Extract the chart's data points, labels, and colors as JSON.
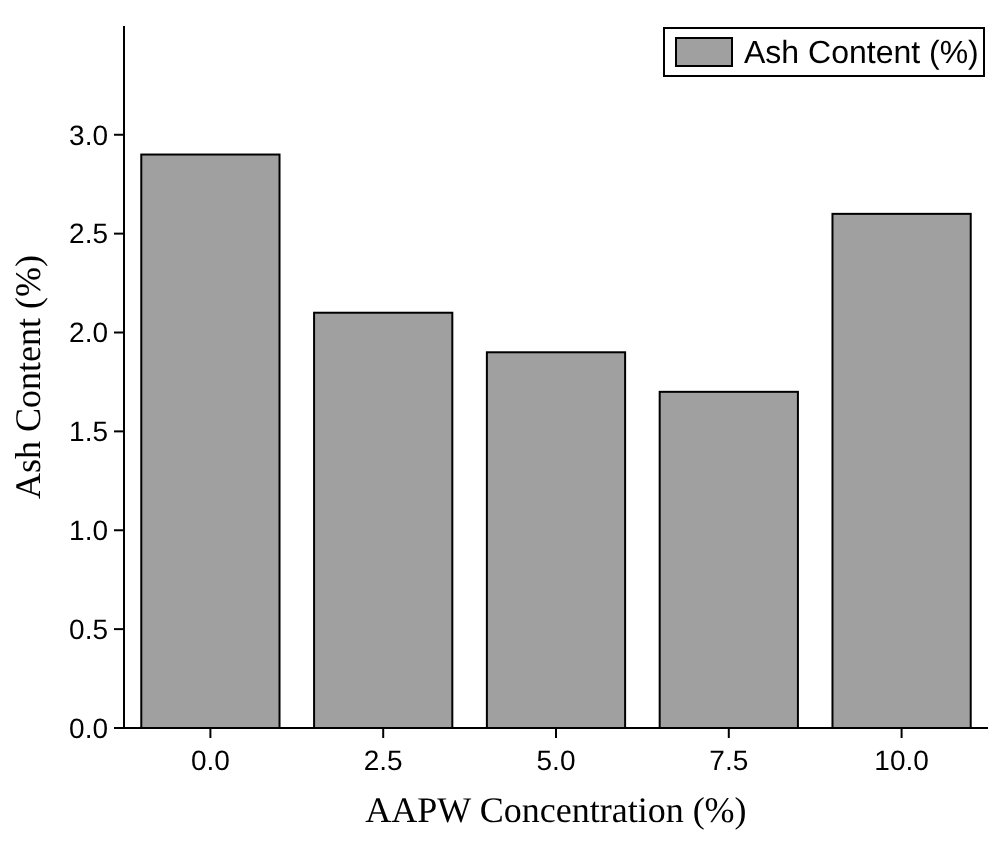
{
  "chart_data": {
    "type": "bar",
    "xlabel": "AAPW Concentration (%)",
    "ylabel": "Ash Content (%)",
    "categories": [
      "0.0",
      "2.5",
      "5.0",
      "7.5",
      "10.0"
    ],
    "series": [
      {
        "name": "Ash Content (%)",
        "color": "#a0a0a0",
        "values": [
          2.9,
          2.1,
          1.9,
          1.7,
          2.6
        ]
      }
    ],
    "ylim": [
      0,
      3.55
    ],
    "yticks": [
      {
        "value": 0,
        "label": "0.0"
      },
      {
        "value": 0.5,
        "label": "0.5"
      },
      {
        "value": 1,
        "label": "1.0"
      },
      {
        "value": 1.5,
        "label": "1.5"
      },
      {
        "value": 2,
        "label": "2.0"
      },
      {
        "value": 2.5,
        "label": "2.5"
      },
      {
        "value": 3,
        "label": "3.0"
      }
    ],
    "legend": "top right",
    "grid": false
  }
}
